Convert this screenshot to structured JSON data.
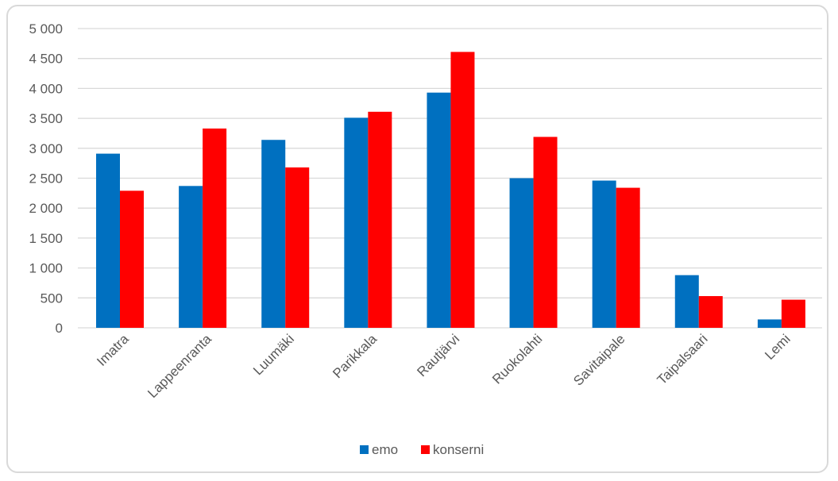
{
  "chart_data": {
    "type": "bar",
    "categories": [
      "Imatra",
      "Lappeenranta",
      "Luumäki",
      "Parikkala",
      "Rautjärvi",
      "Ruokolahti",
      "Savitaipale",
      "Taipalsaari",
      "Lemi"
    ],
    "series": [
      {
        "name": "emo",
        "color": "#0070c0",
        "values": [
          2910,
          2370,
          3140,
          3510,
          3930,
          2500,
          2460,
          880,
          140
        ]
      },
      {
        "name": "konserni",
        "color": "#ff0000",
        "values": [
          2290,
          3330,
          2680,
          3610,
          4610,
          3190,
          2340,
          530,
          470
        ]
      }
    ],
    "ylim": [
      0,
      5000
    ],
    "yticks": [
      0,
      500,
      1000,
      1500,
      2000,
      2500,
      3000,
      3500,
      4000,
      4500,
      5000
    ],
    "ytick_labels": [
      "0",
      "500",
      "1 000",
      "1 500",
      "2 000",
      "2 500",
      "3 000",
      "3 500",
      "4 000",
      "4 500",
      "5 000"
    ],
    "grid": true,
    "legend_position": "bottom",
    "title": "",
    "xlabel": "",
    "ylabel": ""
  }
}
